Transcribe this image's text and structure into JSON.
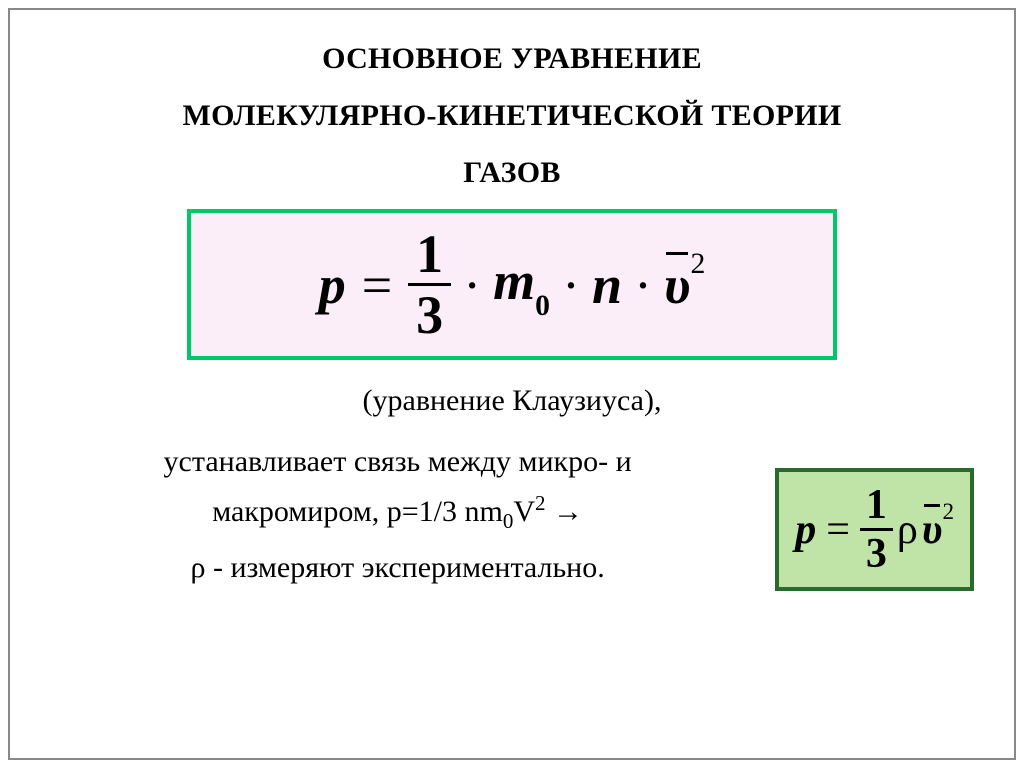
{
  "title": {
    "line1": "ОСНОВНОЕ УРАВНЕНИЕ",
    "line2": "МОЛЕКУЛЯРНО-КИНЕТИЧЕСКОЙ ТЕОРИИ",
    "line3": "ГАЗОВ",
    "fontsize": 30,
    "weight": 700,
    "color": "#000000"
  },
  "main_equation": {
    "lhs": "p",
    "frac_num": "1",
    "frac_den": "3",
    "term_m": "m",
    "term_m_sub": "0",
    "term_n": "n",
    "term_v_bar": "υ",
    "term_v_sup": "2",
    "box_border_color": "#00c868",
    "box_bg_color": "#fbeef9",
    "box_border_width": 4,
    "fontsize": 54,
    "font_style": "italic-bold"
  },
  "subtitle": {
    "text": "(уравнение Клаузиуса),",
    "fontsize": 30
  },
  "description": {
    "line1": "устанавливает связь между микро- и",
    "line2_prefix": "макромиром,  ",
    "line2_math": "p=1/3 nm",
    "line2_math_sub": "0",
    "line2_math_V": "V",
    "line2_math_sup": "2",
    "line2_arrow": " →",
    "line3": "ρ - измеряют экспериментально.",
    "fontsize": 30
  },
  "small_equation": {
    "lhs": "p",
    "frac_num": "1",
    "frac_den": "3",
    "rho": "ρ",
    "v_bar": "υ",
    "v_sup": "2",
    "box_border_color": "#2a6a2a",
    "box_bg_color": "#c0e3a8",
    "box_border_width": 4,
    "fontsize": 42
  },
  "frame": {
    "border_color": "#888888",
    "border_width": 2,
    "background": "#ffffff"
  }
}
